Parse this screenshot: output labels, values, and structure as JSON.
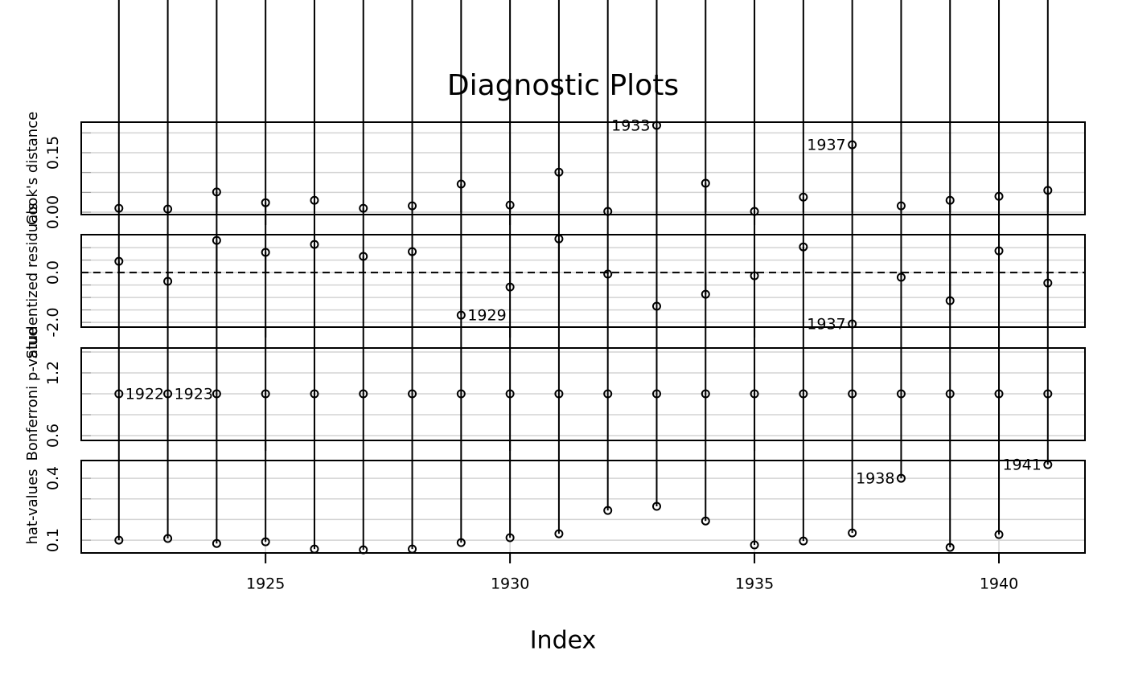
{
  "chart_data": [
    {
      "type": "stem",
      "title": "Diagnostic Plots",
      "ylabel": "Cook's distance",
      "x": [
        1922,
        1923,
        1924,
        1925,
        1926,
        1927,
        1928,
        1929,
        1930,
        1931,
        1932,
        1933,
        1934,
        1935,
        1936,
        1937,
        1938,
        1939,
        1940,
        1941
      ],
      "values": [
        0.01,
        0.008,
        0.051,
        0.024,
        0.03,
        0.01,
        0.016,
        0.071,
        0.018,
        0.101,
        0.002,
        0.219,
        0.073,
        0.002,
        0.038,
        0.17,
        0.016,
        0.03,
        0.04,
        0.055
      ],
      "point_labels": [
        null,
        null,
        null,
        null,
        null,
        null,
        null,
        null,
        null,
        null,
        null,
        "1933",
        null,
        null,
        null,
        "1937",
        null,
        null,
        null,
        null
      ],
      "xlim": [
        1921.23,
        1941.76
      ],
      "ylim": [
        -0.006,
        0.227
      ],
      "yticks": [
        {
          "value": 0,
          "label": "0.00"
        },
        {
          "value": 0.05,
          "label": null
        },
        {
          "value": 0.1,
          "label": null
        },
        {
          "value": 0.15,
          "label": "0.15"
        },
        {
          "value": 0.2,
          "label": null
        }
      ],
      "baseline": 0,
      "grid": true
    },
    {
      "type": "stem",
      "ylabel": "Studentized residuals",
      "x": [
        1922,
        1923,
        1924,
        1925,
        1926,
        1927,
        1928,
        1929,
        1930,
        1931,
        1932,
        1933,
        1934,
        1935,
        1936,
        1937,
        1938,
        1939,
        1940,
        1941
      ],
      "values": [
        0.45,
        -0.35,
        1.29,
        0.81,
        1.13,
        0.65,
        0.84,
        -1.71,
        -0.58,
        1.35,
        -0.06,
        -1.35,
        -0.87,
        -0.13,
        1.03,
        -2.06,
        -0.19,
        -1.13,
        0.87,
        -0.42
      ],
      "point_labels": [
        null,
        null,
        null,
        null,
        null,
        null,
        null,
        "1929",
        null,
        null,
        null,
        null,
        null,
        null,
        null,
        "1937",
        null,
        null,
        null,
        null
      ],
      "xlim": [
        1921.23,
        1941.76
      ],
      "ylim": [
        -2.19,
        1.52
      ],
      "yticks": [
        {
          "value": -2,
          "label": "-2.0"
        },
        {
          "value": -1.5,
          "label": null
        },
        {
          "value": -1,
          "label": null
        },
        {
          "value": -0.5,
          "label": null
        },
        {
          "value": 0,
          "label": "0.0"
        },
        {
          "value": 0.5,
          "label": null
        },
        {
          "value": 1,
          "label": null
        }
      ],
      "baseline": 0,
      "reference_line": 0,
      "grid": true
    },
    {
      "type": "points",
      "ylabel": "Bonferroni p-value",
      "x": [
        1922,
        1923,
        1924,
        1925,
        1926,
        1927,
        1928,
        1929,
        1930,
        1931,
        1932,
        1933,
        1934,
        1935,
        1936,
        1937,
        1938,
        1939,
        1940,
        1941
      ],
      "values": [
        1,
        1,
        1,
        1,
        1,
        1,
        1,
        1,
        1,
        1,
        1,
        1,
        1,
        1,
        1,
        1,
        1,
        1,
        1,
        1
      ],
      "point_labels": [
        "1922",
        "1923",
        null,
        null,
        null,
        null,
        null,
        null,
        null,
        null,
        null,
        null,
        null,
        null,
        null,
        null,
        null,
        null,
        null,
        null
      ],
      "xlim": [
        1921.23,
        1941.76
      ],
      "ylim": [
        0.554,
        1.438
      ],
      "yticks": [
        {
          "value": 0.6,
          "label": "0.6"
        },
        {
          "value": 0.8,
          "label": null
        },
        {
          "value": 1.0,
          "label": null
        },
        {
          "value": 1.2,
          "label": "1.2"
        },
        {
          "value": 1.4,
          "label": null
        }
      ],
      "grid": true
    },
    {
      "type": "stem",
      "ylabel": "hat-values",
      "xlabel": "Index",
      "x": [
        1922,
        1923,
        1924,
        1925,
        1926,
        1927,
        1928,
        1929,
        1930,
        1931,
        1932,
        1933,
        1934,
        1935,
        1936,
        1937,
        1938,
        1939,
        1940,
        1941
      ],
      "values": [
        0.1,
        0.108,
        0.084,
        0.092,
        0.057,
        0.053,
        0.057,
        0.088,
        0.112,
        0.131,
        0.244,
        0.264,
        0.193,
        0.077,
        0.096,
        0.135,
        0.4,
        0.065,
        0.127,
        0.466
      ],
      "point_labels": [
        null,
        null,
        null,
        null,
        null,
        null,
        null,
        null,
        null,
        null,
        null,
        null,
        null,
        null,
        null,
        null,
        "1938",
        null,
        null,
        "1941"
      ],
      "xlim": [
        1921.23,
        1941.76
      ],
      "ylim": [
        0.038,
        0.486
      ],
      "yticks": [
        {
          "value": 0.1,
          "label": "0.1"
        },
        {
          "value": 0.2,
          "label": null
        },
        {
          "value": 0.3,
          "label": null
        },
        {
          "value": 0.4,
          "label": "0.4"
        }
      ],
      "xticks": [
        1925,
        1930,
        1935,
        1940
      ],
      "grid": true
    }
  ]
}
